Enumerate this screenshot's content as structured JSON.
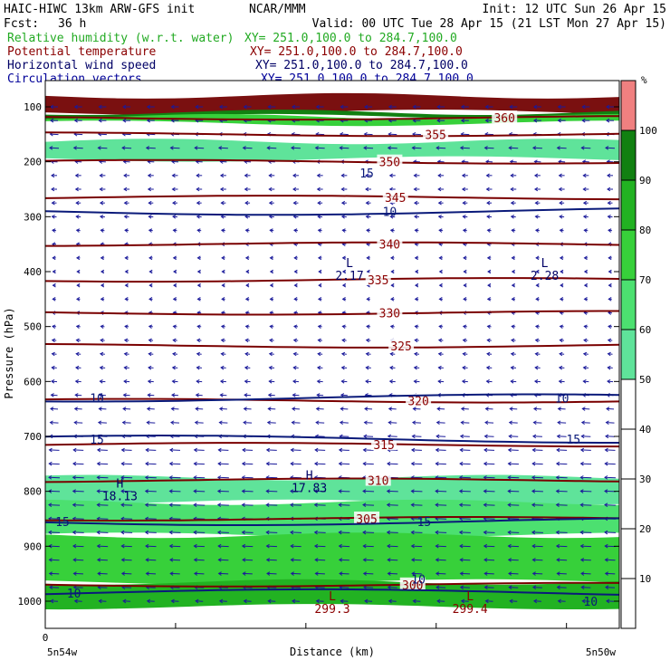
{
  "header": {
    "model": "HAIC-HIWC 13km ARW-GFS init",
    "org": "NCAR/MMM",
    "init": "Init: 12 UTC Sun 26 Apr 15",
    "fcst_label": "Fcst:",
    "fcst_value": "36 h",
    "valid": "Valid: 00 UTC Tue 28 Apr 15 (21 LST Mon 27 Apr 15)",
    "fields": [
      {
        "name": "Relative humidity (w.r.t. water)",
        "xy": "XY= 251.0,100.0 to 284.7,100.0",
        "color": "#22aa22"
      },
      {
        "name": "Potential temperature",
        "xy": "XY= 251.0,100.0 to 284.7,100.0",
        "color": "#8b0000"
      },
      {
        "name": "Horizontal wind speed",
        "xy": "XY= 251.0,100.0 to 284.7,100.0",
        "color": "#000066"
      },
      {
        "name": "Circulation vectors",
        "xy": "XY= 251.0,100.0 to 284.7,100.0",
        "color": "#000099"
      }
    ]
  },
  "chart_data": {
    "type": "heatmap",
    "ylabel": "Pressure (hPa)",
    "xlabel": "Distance (km)",
    "y_ticks": [
      100,
      200,
      300,
      400,
      500,
      600,
      700,
      800,
      900,
      1000
    ],
    "ylim": [
      1050,
      80
    ],
    "x_tick_zero": "0",
    "x_endpoints": [
      "5n54w",
      "5n50w"
    ],
    "colorbar": {
      "unit": "%",
      "levels": [
        10,
        20,
        30,
        40,
        50,
        60,
        70,
        80,
        90,
        100
      ],
      "bands": [
        {
          "from": 0,
          "to": 50,
          "color": "#ffffff"
        },
        {
          "from": 50,
          "to": 60,
          "color": "#5fe39a"
        },
        {
          "from": 60,
          "to": 70,
          "color": "#4ce070"
        },
        {
          "from": 70,
          "to": 80,
          "color": "#37d03a"
        },
        {
          "from": 80,
          "to": 90,
          "color": "#22b222"
        },
        {
          "from": 90,
          "to": 100,
          "color": "#118011"
        },
        {
          "from": 100,
          "to": 110,
          "color": "#f08080"
        }
      ]
    },
    "rh_regions": [
      {
        "p_top": 80,
        "p_bot": 110,
        "color": "#7a1010"
      },
      {
        "p_top": 110,
        "p_bot": 118,
        "color": "#118011"
      },
      {
        "p_top": 118,
        "p_bot": 130,
        "color": "#37d03a"
      },
      {
        "p_top": 163,
        "p_bot": 195,
        "color": "#5fe39a"
      },
      {
        "p_top": 775,
        "p_bot": 820,
        "color": "#5fe39a"
      },
      {
        "p_top": 820,
        "p_bot": 880,
        "color": "#4ce070"
      },
      {
        "p_top": 880,
        "p_bot": 965,
        "color": "#37d03a"
      },
      {
        "p_top": 965,
        "p_bot": 1010,
        "color": "#22b222"
      }
    ],
    "theta_contours": [
      {
        "label": "300",
        "p": 970,
        "label_x": 0.64
      },
      {
        "label": "305",
        "p": 850,
        "label_x": 0.56
      },
      {
        "label": "310",
        "p": 780,
        "label_x": 0.58
      },
      {
        "label": "315",
        "p": 715,
        "label_x": 0.59
      },
      {
        "label": "320",
        "p": 635,
        "label_x": 0.65
      },
      {
        "label": "325",
        "p": 535,
        "label_x": 0.62
      },
      {
        "label": "330",
        "p": 475,
        "label_x": 0.6
      },
      {
        "label": "335",
        "p": 415,
        "label_x": 0.58
      },
      {
        "label": "340",
        "p": 350,
        "label_x": 0.6
      },
      {
        "label": "345",
        "p": 265,
        "label_x": 0.61
      },
      {
        "label": "350",
        "p": 200,
        "label_x": 0.6
      },
      {
        "label": "355",
        "p": 150,
        "label_x": 0.68
      },
      {
        "label": "360",
        "p": 120,
        "label_x": 0.8
      }
    ],
    "wind_contours": [
      {
        "label": "10",
        "p": 290,
        "label_x": 0.6
      },
      {
        "label": "10",
        "p": 630,
        "label_x": 0.09
      },
      {
        "label": "10",
        "p": 630,
        "label_x": 0.9
      },
      {
        "label": "15",
        "p": 705,
        "label_x": 0.09
      },
      {
        "label": "15",
        "p": 705,
        "label_x": 0.92
      },
      {
        "label": "15",
        "p": 855,
        "label_x": 0.03
      },
      {
        "label": "15",
        "p": 855,
        "label_x": 0.66
      },
      {
        "label": "10",
        "p": 985,
        "label_x": 0.05
      },
      {
        "label": "10",
        "p": 960,
        "label_x": 0.65
      },
      {
        "label": "15",
        "p": 220,
        "label_x": 0.56
      },
      {
        "label": "10",
        "p": 1000,
        "label_x": 0.95
      }
    ],
    "extrema": [
      {
        "symbol": "L",
        "value": "2.17",
        "x": 0.53,
        "p": 398,
        "color": "#000066"
      },
      {
        "symbol": "L",
        "value": "2.28",
        "x": 0.87,
        "p": 398,
        "color": "#000066"
      },
      {
        "symbol": "H",
        "value": "18.13",
        "x": 0.13,
        "p": 800,
        "color": "#000066"
      },
      {
        "symbol": "H",
        "value": "17.83",
        "x": 0.46,
        "p": 785,
        "color": "#000066"
      },
      {
        "symbol": "L",
        "value": "299.3",
        "x": 0.5,
        "p": 1005,
        "color": "#8b0000"
      },
      {
        "symbol": "L",
        "value": "299.4",
        "x": 0.74,
        "p": 1005,
        "color": "#8b0000"
      }
    ],
    "vectors": {
      "rows_hpa": [
        100,
        125,
        150,
        175,
        200,
        225,
        250,
        275,
        300,
        325,
        350,
        375,
        400,
        425,
        450,
        475,
        500,
        525,
        550,
        575,
        600,
        625,
        650,
        675,
        700,
        725,
        750,
        775,
        800,
        825,
        850,
        875,
        900,
        925,
        950,
        975,
        1000
      ],
      "u": [
        -0.6,
        -0.6,
        -0.7,
        -0.8,
        -0.5,
        -0.4,
        -0.4,
        -0.3,
        -0.3,
        -0.2,
        -0.2,
        -0.15,
        -0.1,
        -0.1,
        -0.15,
        -0.2,
        -0.2,
        -0.25,
        -0.3,
        -0.35,
        -0.4,
        -0.5,
        -0.6,
        -0.7,
        -0.8,
        -0.9,
        -0.95,
        -1.0,
        -1.0,
        -1.0,
        -1.0,
        -1.0,
        -0.95,
        -0.9,
        -0.85,
        -0.8,
        -0.6
      ],
      "w": [
        0,
        0,
        0.05,
        0.05,
        0.05,
        0,
        0,
        0,
        0.05,
        0.05,
        0,
        0,
        0,
        0,
        0,
        0.05,
        0.05,
        0.05,
        0.05,
        0.05,
        0.05,
        0.05,
        0.05,
        0.05,
        0.05,
        0.05,
        0.05,
        0.05,
        0.05,
        0.05,
        0.05,
        0.05,
        0.05,
        0.05,
        0.05,
        0.05,
        0.05
      ]
    }
  }
}
